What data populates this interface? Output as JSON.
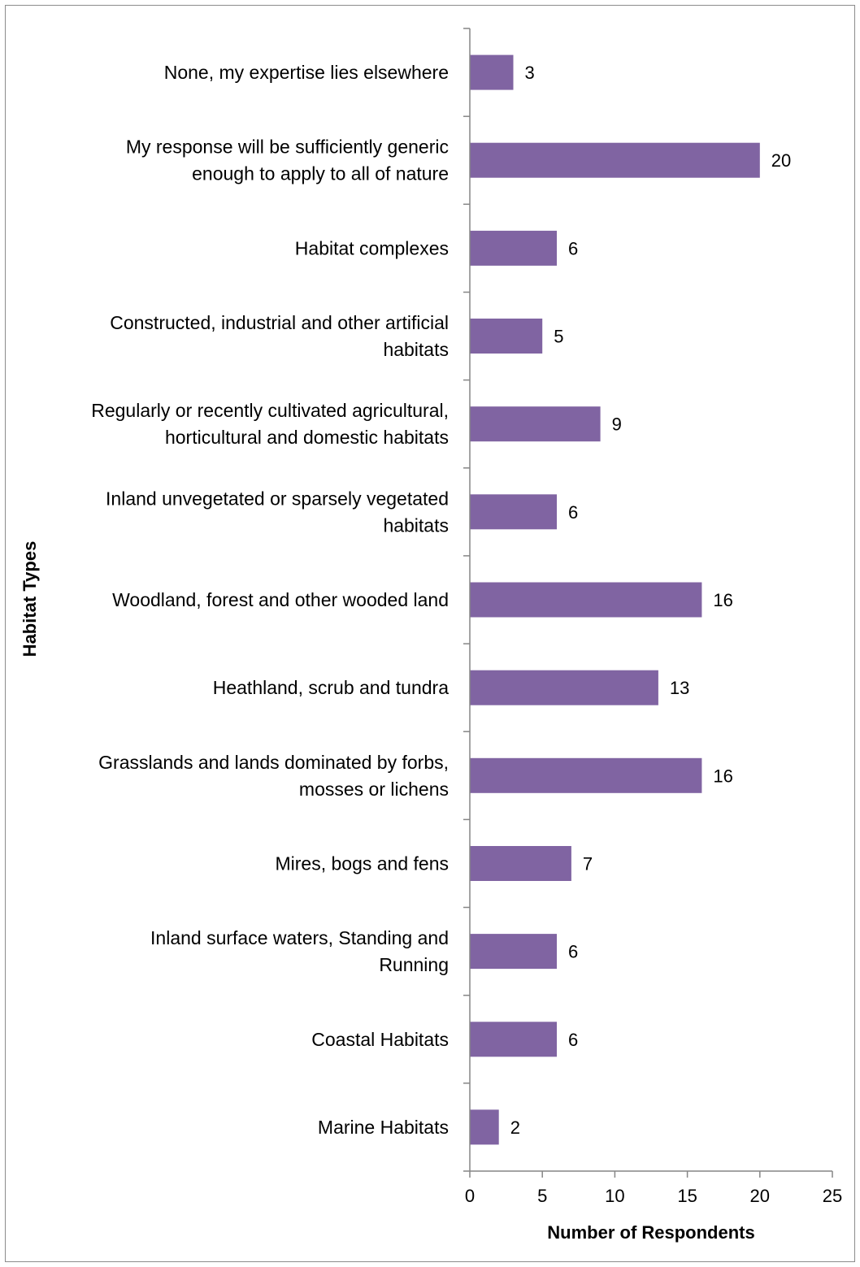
{
  "chart_data": {
    "type": "bar",
    "orientation": "horizontal",
    "categories": [
      "None, my expertise lies elsewhere",
      "My response will be sufficiently generic enough to apply to all of nature",
      "Habitat complexes",
      "Constructed, industrial and other artificial habitats",
      "Regularly or recently cultivated agricultural, horticultural and domestic habitats",
      "Inland unvegetated or sparsely vegetated habitats",
      "Woodland, forest and other wooded land",
      "Heathland, scrub and tundra",
      "Grasslands and lands dominated by forbs, mosses or lichens",
      "Mires, bogs and fens",
      "Inland surface waters, Standing and Running",
      "Coastal Habitats",
      "Marine Habitats"
    ],
    "category_lines": [
      [
        "None, my expertise lies elsewhere"
      ],
      [
        "My response will be sufficiently generic",
        "enough to apply to all of nature"
      ],
      [
        "Habitat complexes"
      ],
      [
        "Constructed, industrial and other artificial",
        "habitats"
      ],
      [
        "Regularly or recently cultivated agricultural,",
        "horticultural and domestic habitats"
      ],
      [
        "Inland unvegetated or sparsely vegetated",
        "habitats"
      ],
      [
        "Woodland, forest and other wooded land"
      ],
      [
        "Heathland, scrub and tundra"
      ],
      [
        "Grasslands and lands dominated by forbs,",
        "mosses or lichens"
      ],
      [
        "Mires, bogs and fens"
      ],
      [
        "Inland surface waters, Standing and",
        "Running"
      ],
      [
        "Coastal Habitats"
      ],
      [
        "Marine Habitats"
      ]
    ],
    "values": [
      3,
      20,
      6,
      5,
      9,
      6,
      16,
      13,
      16,
      7,
      6,
      6,
      2
    ],
    "xlabel": "Number of Respondents",
    "ylabel": "Habitat Types",
    "xlim": [
      0,
      25
    ],
    "xticks": [
      0,
      5,
      10,
      15,
      20,
      25
    ],
    "grid": false,
    "legend": "none",
    "bar_color": "#8064a2",
    "axis_color": "#868686",
    "data_labels": true
  }
}
